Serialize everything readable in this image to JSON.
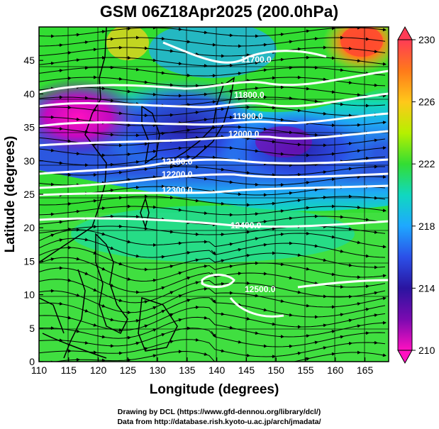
{
  "title": "GSM 06Z18Apr2025 (200.0hPa)",
  "x_axis_label": "Longitude (degrees)",
  "y_axis_label": "Latitude  (degrees)",
  "colorbar": {
    "ticks": [
      "230",
      "226",
      "222",
      "218",
      "214",
      "210"
    ],
    "colors": [
      "#ff3b55",
      "#ff8c1a",
      "#ffd21a",
      "#b6f000",
      "#33dd33",
      "#10d8c0",
      "#1ea8ff",
      "#2b50e8",
      "#2a14a0",
      "#7a0ab0",
      "#ff10c0"
    ]
  },
  "credits": {
    "line1": "Drawing by DCL (https://www.gfd-dennou.org/library/dcl/)",
    "line2": "Data from http://database.rish.kyoto-u.ac.jp/arch/jmadata/"
  },
  "chart_data": {
    "type": "heatmap",
    "title": "GSM 06Z18Apr2025 (200.0hPa)",
    "xlabel": "Longitude (degrees)",
    "ylabel": "Latitude  (degrees)",
    "xlim": [
      110,
      169
    ],
    "ylim": [
      0,
      50
    ],
    "x_ticks": [
      "110",
      "115",
      "120",
      "125",
      "130",
      "135",
      "140",
      "145",
      "150",
      "155",
      "160",
      "165"
    ],
    "y_ticks": [
      "0",
      "5",
      "10",
      "15",
      "20",
      "25",
      "30",
      "35",
      "40",
      "45"
    ],
    "color_scale": {
      "min": 210,
      "max": 230,
      "ticks": [
        210,
        214,
        218,
        222,
        226,
        230
      ]
    },
    "grid": true,
    "contours": [
      {
        "label": "11700.0",
        "lat_at_150E": 47.0
      },
      {
        "label": "11800.0",
        "lat_at_150E": 41.5
      },
      {
        "label": "11900.0",
        "lat_at_150E": 38.5
      },
      {
        "label": "12000.0",
        "lat_at_150E": 35.5
      },
      {
        "label": "12100.0",
        "lat_at_150E": 32.0
      },
      {
        "label": "12200.0",
        "lat_at_150E": 29.5
      },
      {
        "label": "12300.0",
        "lat_at_150E": 27.0
      },
      {
        "label": "12400.0",
        "lat_at_150E": 21.5
      },
      {
        "label": "12500.0",
        "lat_at_150E": 11.0
      }
    ]
  }
}
